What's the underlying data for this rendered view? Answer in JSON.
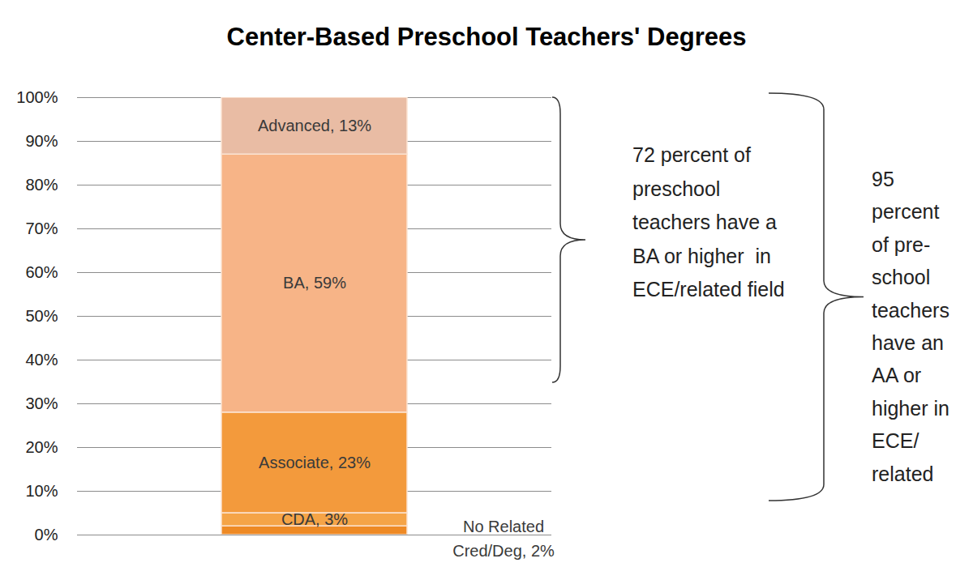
{
  "chart_data": {
    "type": "bar",
    "title": "Center-Based Preschool Teachers' Degrees",
    "stacked": true,
    "data_labels": true,
    "grid": true,
    "categories": [
      null
    ],
    "series": [
      {
        "name": "No Related Cred/Deg",
        "color": "#ee8a25",
        "values": [
          2
        ],
        "value_labels": [
          "No Related Cred/Deg, 2%"
        ]
      },
      {
        "name": "CDA",
        "color": "#f5a447",
        "values": [
          3
        ],
        "value_labels": [
          "CDA, 3%"
        ]
      },
      {
        "name": "Associate",
        "color": "#f39a3c",
        "values": [
          23
        ],
        "value_labels": [
          "Associate, 23%"
        ]
      },
      {
        "name": "BA",
        "color": "#f7b487",
        "values": [
          59
        ],
        "value_labels": [
          "BA, 59%"
        ]
      },
      {
        "name": "Advanced",
        "color": "#e9bca4",
        "values": [
          13
        ],
        "value_labels": [
          "Advanced, 13%"
        ]
      }
    ],
    "ylim": [
      0,
      100
    ],
    "yticks": [
      {
        "value": 0,
        "label": "0%"
      },
      {
        "value": 10,
        "label": "10%"
      },
      {
        "value": 20,
        "label": "20%"
      },
      {
        "value": 30,
        "label": "30%"
      },
      {
        "value": 40,
        "label": "40%"
      },
      {
        "value": 50,
        "label": "50%"
      },
      {
        "value": 60,
        "label": "60%"
      },
      {
        "value": 70,
        "label": "70%"
      },
      {
        "value": 80,
        "label": "80%"
      },
      {
        "value": 90,
        "label": "90%"
      },
      {
        "value": 100,
        "label": "100%"
      }
    ],
    "annotations": [
      {
        "lines": [
          "72 percent of",
          "preschool",
          "teachers have a",
          "BA or higher  in",
          "ECE/related field"
        ]
      },
      {
        "lines": [
          "95",
          "percent",
          "of pre-",
          "school",
          "teachers",
          "have an",
          "AA or",
          "higher in",
          "ECE/",
          "related"
        ]
      }
    ]
  }
}
